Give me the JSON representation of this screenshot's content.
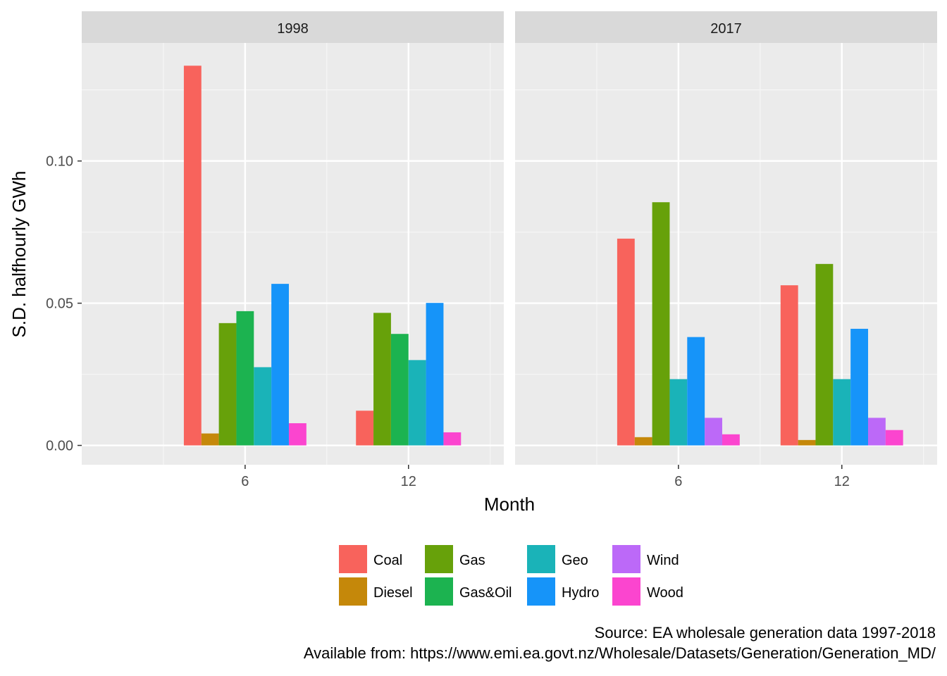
{
  "chart_data": {
    "type": "bar",
    "ylabel": "S.D. halfhourly GWh",
    "xlabel": "Month",
    "ylim": [
      -0.0068,
      0.1415
    ],
    "y_ticks": [
      0.0,
      0.05,
      0.1
    ],
    "y_tick_labels": [
      "0.00",
      "0.05",
      "0.10"
    ],
    "x_range": [
      0,
      15.5
    ],
    "categories": [
      6,
      12
    ],
    "x_tick_labels": [
      "6",
      "12"
    ],
    "grid": true,
    "legend_position": "bottom",
    "series": [
      {
        "name": "Coal",
        "color": "#F8766D"
      },
      {
        "name": "Diesel",
        "color": "#C49A00"
      },
      {
        "name": "Gas",
        "color": "#53B400"
      },
      {
        "name": "Gas&Oil",
        "color": "#00C094"
      },
      {
        "name": "Geo",
        "color": "#00B6EB"
      },
      {
        "name": "Hydro",
        "color": "#A58AFF"
      },
      {
        "name": "Wind",
        "color": "#C77CFF"
      },
      {
        "name": "Wood",
        "color": "#FB61D7"
      }
    ],
    "panels": [
      {
        "label": "1998",
        "groups": [
          {
            "month": 6,
            "bars": [
              {
                "series": "Coal",
                "value": 0.1335
              },
              {
                "series": "Diesel",
                "value": 0.0042
              },
              {
                "series": "Gas",
                "value": 0.043
              },
              {
                "series": "Gas&Oil",
                "value": 0.0472
              },
              {
                "series": "Geo",
                "value": 0.0275
              },
              {
                "series": "Hydro",
                "value": 0.0568
              },
              {
                "series": "Wood",
                "value": 0.0078
              }
            ]
          },
          {
            "month": 12,
            "bars": [
              {
                "series": "Coal",
                "value": 0.0122
              },
              {
                "series": "Gas",
                "value": 0.0466
              },
              {
                "series": "Gas&Oil",
                "value": 0.0392
              },
              {
                "series": "Geo",
                "value": 0.03
              },
              {
                "series": "Hydro",
                "value": 0.0501
              },
              {
                "series": "Wood",
                "value": 0.0046
              }
            ]
          }
        ]
      },
      {
        "label": "2017",
        "groups": [
          {
            "month": 6,
            "bars": [
              {
                "series": "Coal",
                "value": 0.0727
              },
              {
                "series": "Diesel",
                "value": 0.0029
              },
              {
                "series": "Gas",
                "value": 0.0855
              },
              {
                "series": "Geo",
                "value": 0.0233
              },
              {
                "series": "Hydro",
                "value": 0.0381
              },
              {
                "series": "Wind",
                "value": 0.0097
              },
              {
                "series": "Wood",
                "value": 0.0039
              }
            ]
          },
          {
            "month": 12,
            "bars": [
              {
                "series": "Coal",
                "value": 0.0563
              },
              {
                "series": "Diesel",
                "value": 0.0019
              },
              {
                "series": "Gas",
                "value": 0.0638
              },
              {
                "series": "Geo",
                "value": 0.0233
              },
              {
                "series": "Hydro",
                "value": 0.041
              },
              {
                "series": "Wind",
                "value": 0.0097
              },
              {
                "series": "Wood",
                "value": 0.0054
              }
            ]
          }
        ]
      }
    ]
  },
  "caption": {
    "line1": "Source: EA wholesale generation data 1997-2018",
    "line2": "Available from: https://www.emi.ea.govt.nz/Wholesale/Datasets/Generation/Generation_MD/"
  }
}
